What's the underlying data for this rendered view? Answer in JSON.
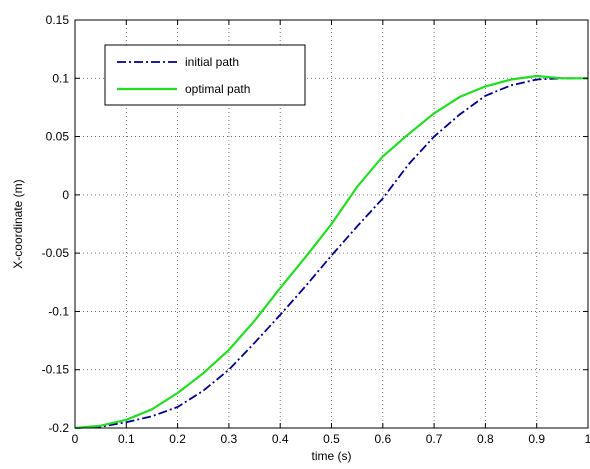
{
  "chart_data": {
    "type": "line",
    "title": "",
    "xlabel": "time (s)",
    "ylabel": "X-coordinate (m)",
    "xlim": [
      0,
      1
    ],
    "ylim": [
      -0.2,
      0.15
    ],
    "xticks": [
      0,
      0.1,
      0.2,
      0.3,
      0.4,
      0.5,
      0.6,
      0.7,
      0.8,
      0.9,
      1
    ],
    "yticks": [
      -0.2,
      -0.15,
      -0.1,
      -0.05,
      0,
      0.05,
      0.1,
      0.15
    ],
    "xtick_labels": [
      "0",
      "0.1",
      "0.2",
      "0.3",
      "0.4",
      "0.5",
      "0.6",
      "0.7",
      "0.8",
      "0.9",
      "1"
    ],
    "ytick_labels": [
      "-0.2",
      "-0.15",
      "-0.1",
      "-0.05",
      "0",
      "0.05",
      "0.1",
      "0.15"
    ],
    "grid": true,
    "legend_position": "top-left",
    "series": [
      {
        "name": "initial path",
        "color": "#00008b",
        "line_style": "dash-dot",
        "x": [
          0,
          0.05,
          0.1,
          0.15,
          0.2,
          0.25,
          0.3,
          0.35,
          0.4,
          0.45,
          0.5,
          0.55,
          0.6,
          0.65,
          0.7,
          0.75,
          0.8,
          0.85,
          0.9,
          0.95,
          1.0
        ],
        "y": [
          -0.2,
          -0.199,
          -0.195,
          -0.19,
          -0.182,
          -0.168,
          -0.15,
          -0.127,
          -0.103,
          -0.078,
          -0.052,
          -0.027,
          -0.003,
          0.026,
          0.05,
          0.069,
          0.085,
          0.094,
          0.099,
          0.1,
          0.1
        ]
      },
      {
        "name": "optimal path",
        "color": "#22dd22",
        "line_style": "solid",
        "x": [
          0,
          0.05,
          0.1,
          0.15,
          0.2,
          0.25,
          0.3,
          0.35,
          0.4,
          0.45,
          0.5,
          0.55,
          0.6,
          0.65,
          0.7,
          0.75,
          0.8,
          0.85,
          0.9,
          0.95,
          1.0
        ],
        "y": [
          -0.2,
          -0.198,
          -0.193,
          -0.184,
          -0.17,
          -0.153,
          -0.133,
          -0.108,
          -0.08,
          -0.053,
          -0.025,
          0.007,
          0.033,
          0.052,
          0.07,
          0.084,
          0.093,
          0.099,
          0.102,
          0.1,
          0.1
        ]
      }
    ]
  }
}
